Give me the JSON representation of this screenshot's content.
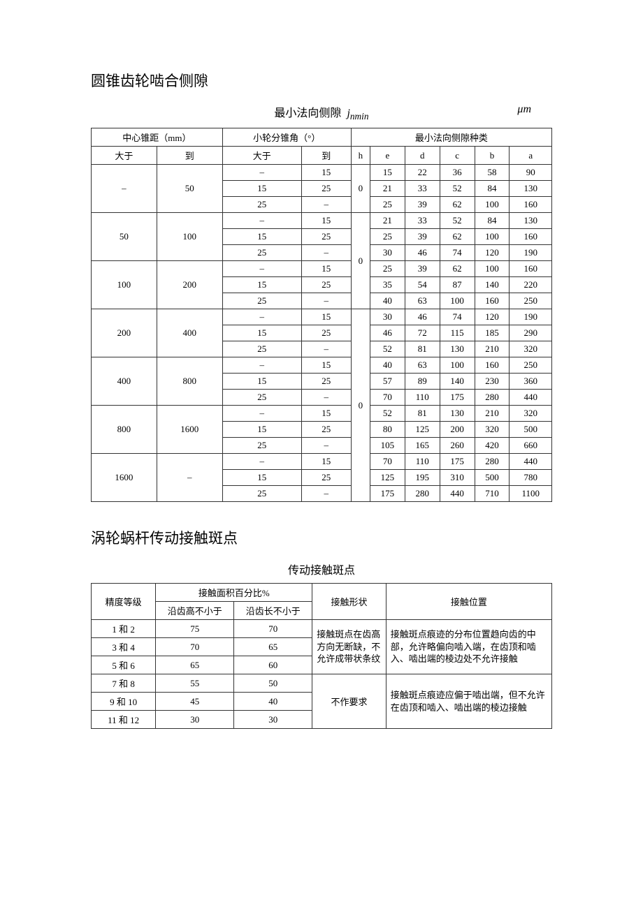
{
  "section1": {
    "heading": "圆锥齿轮啮合侧隙",
    "tableTitle": "最小法向侧隙",
    "tableTitleSub": "j",
    "tableTitleSubSub": "nmin",
    "unit": "μm",
    "header": {
      "colA": "中心锥距（mm）",
      "colB": "小轮分锥角（°）",
      "colC": "最小法向侧隙种类",
      "a1": "大于",
      "a2": "到",
      "b1": "大于",
      "b2": "到",
      "kinds": [
        "h",
        "e",
        "d",
        "c",
        "b",
        "a"
      ]
    },
    "blocks": [
      {
        "gt": "–",
        "to": "50",
        "rows": [
          {
            "bg": "–",
            "bt": "15",
            "e": "15",
            "d": "22",
            "c": "36",
            "b": "58",
            "a": "90"
          },
          {
            "bg": "15",
            "bt": "25",
            "e": "21",
            "d": "33",
            "c": "52",
            "b": "84",
            "a": "130"
          },
          {
            "bg": "25",
            "bt": "–",
            "e": "25",
            "d": "39",
            "c": "62",
            "b": "100",
            "a": "160"
          }
        ],
        "h": "0",
        "hspan": 3
      },
      {
        "gt": "50",
        "to": "100",
        "rows": [
          {
            "bg": "–",
            "bt": "15",
            "e": "21",
            "d": "33",
            "c": "52",
            "b": "84",
            "a": "130"
          },
          {
            "bg": "15",
            "bt": "25",
            "e": "25",
            "d": "39",
            "c": "62",
            "b": "100",
            "a": "160"
          },
          {
            "bg": "25",
            "bt": "–",
            "e": "30",
            "d": "46",
            "c": "74",
            "b": "120",
            "a": "190"
          }
        ]
      },
      {
        "gt": "100",
        "to": "200",
        "rows": [
          {
            "bg": "–",
            "bt": "15",
            "e": "25",
            "d": "39",
            "c": "62",
            "b": "100",
            "a": "160"
          },
          {
            "bg": "15",
            "bt": "25",
            "e": "35",
            "d": "54",
            "c": "87",
            "b": "140",
            "a": "220"
          },
          {
            "bg": "25",
            "bt": "–",
            "e": "40",
            "d": "63",
            "c": "100",
            "b": "160",
            "a": "250"
          }
        ],
        "h": "0",
        "hspan": 6,
        "hLeading": true
      },
      {
        "gt": "200",
        "to": "400",
        "rows": [
          {
            "bg": "–",
            "bt": "15",
            "e": "30",
            "d": "46",
            "c": "74",
            "b": "120",
            "a": "190"
          },
          {
            "bg": "15",
            "bt": "25",
            "e": "46",
            "d": "72",
            "c": "115",
            "b": "185",
            "a": "290"
          },
          {
            "bg": "25",
            "bt": "–",
            "e": "52",
            "d": "81",
            "c": "130",
            "b": "210",
            "a": "320"
          }
        ]
      },
      {
        "gt": "400",
        "to": "800",
        "rows": [
          {
            "bg": "–",
            "bt": "15",
            "e": "40",
            "d": "63",
            "c": "100",
            "b": "160",
            "a": "250"
          },
          {
            "bg": "15",
            "bt": "25",
            "e": "57",
            "d": "89",
            "c": "140",
            "b": "230",
            "a": "360"
          },
          {
            "bg": "25",
            "bt": "–",
            "e": "70",
            "d": "110",
            "c": "175",
            "b": "280",
            "a": "440"
          }
        ]
      },
      {
        "gt": "800",
        "to": "1600",
        "rows": [
          {
            "bg": "–",
            "bt": "15",
            "e": "52",
            "d": "81",
            "c": "130",
            "b": "210",
            "a": "320"
          },
          {
            "bg": "15",
            "bt": "25",
            "e": "80",
            "d": "125",
            "c": "200",
            "b": "320",
            "a": "500"
          },
          {
            "bg": "25",
            "bt": "–",
            "e": "105",
            "d": "165",
            "c": "260",
            "b": "420",
            "a": "660"
          }
        ],
        "h": "0",
        "hspan": 9,
        "hLeading": true
      },
      {
        "gt": "1600",
        "to": "–",
        "rows": [
          {
            "bg": "–",
            "bt": "15",
            "e": "70",
            "d": "110",
            "c": "175",
            "b": "280",
            "a": "440"
          },
          {
            "bg": "15",
            "bt": "25",
            "e": "125",
            "d": "195",
            "c": "310",
            "b": "500",
            "a": "780"
          },
          {
            "bg": "25",
            "bt": "–",
            "e": "175",
            "d": "280",
            "c": "440",
            "b": "710",
            "a": "1100"
          }
        ]
      }
    ]
  },
  "section2": {
    "heading": "涡轮蜗杆传动接触斑点",
    "tableTitle": "传动接触斑点",
    "header": {
      "c1": "精度等级",
      "c2": "接触面积百分比%",
      "c2a": "沿齿高不小于",
      "c2b": "沿齿长不小于",
      "c3": "接触形状",
      "c4": "接触位置"
    },
    "rows": [
      {
        "g": "1 和 2",
        "h": "75",
        "l": "70"
      },
      {
        "g": "3 和 4",
        "h": "70",
        "l": "65"
      },
      {
        "g": "5 和 6",
        "h": "65",
        "l": "60"
      },
      {
        "g": "7 和 8",
        "h": "55",
        "l": "50"
      },
      {
        "g": "9 和 10",
        "h": "45",
        "l": "40"
      },
      {
        "g": "11 和 12",
        "h": "30",
        "l": "30"
      }
    ],
    "shape1": "接触斑点在齿高方向无断缺，不允许成带状条纹",
    "shape2": "不作要求",
    "pos1": "接触斑点痕迹的分布位置趋向齿的中部，允许略偏向啮入端，在齿顶和啮入、啮出端的棱边处不允许接触",
    "pos2": "接触斑点痕迹应偏于啮出端，但不允许在齿顶和啮入、啮出端的棱边接触"
  }
}
